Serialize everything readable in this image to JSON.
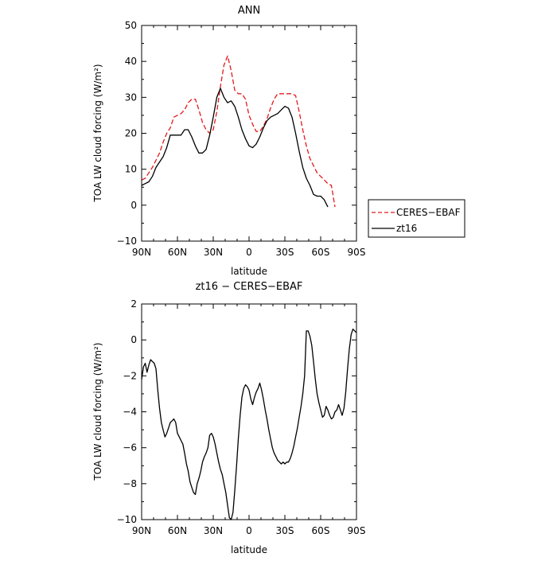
{
  "chart_data": [
    {
      "type": "line",
      "title": "ANN",
      "xlabel": "latitude",
      "ylabel": "TOA LW cloud forcing (W/m²)",
      "xlim": [
        90,
        -90
      ],
      "ylim": [
        -10,
        50
      ],
      "x_ticks": [
        "90N",
        "60N",
        "30N",
        "0",
        "30S",
        "60S",
        "90S"
      ],
      "y_ticks": [
        "50",
        "40",
        "30",
        "20",
        "10",
        "0",
        "−10"
      ],
      "legend": "right",
      "grid": false,
      "series": [
        {
          "name": "CERES−EBAF",
          "color": "#e41a1c",
          "dash": "dashed",
          "x": [
            90,
            87,
            84,
            81,
            78,
            75,
            72,
            69,
            66,
            63,
            60,
            57,
            54,
            51,
            48,
            45,
            42,
            39,
            36,
            33,
            30,
            27,
            24,
            21,
            18,
            15,
            12,
            9,
            6,
            3,
            0,
            -3,
            -6,
            -9,
            -12,
            -15,
            -18,
            -21,
            -24,
            -27,
            -30,
            -33,
            -36,
            -39,
            -42,
            -45,
            -48,
            -51,
            -54,
            -57,
            -60,
            -63,
            -66,
            -69,
            -72,
            -75,
            -78,
            -81,
            -84,
            -87,
            -90
          ],
          "y": [
            7,
            7.5,
            9,
            10.5,
            12.5,
            14.5,
            17.5,
            20,
            21.5,
            24.5,
            25,
            25.5,
            26.5,
            28.5,
            29.5,
            29.5,
            26.5,
            23,
            21,
            20,
            21,
            26,
            33,
            39,
            41.5,
            37.5,
            32,
            31,
            31,
            29.5,
            25,
            22.5,
            20.5,
            20.5,
            22,
            24,
            27,
            29.5,
            31,
            31,
            31,
            31,
            31,
            30.5,
            26,
            21,
            16.5,
            13,
            11,
            9,
            8,
            7,
            6,
            5.5,
            -0.5,
            null,
            null,
            null,
            null,
            null,
            null
          ]
        },
        {
          "name": "zt16",
          "color": "#000000",
          "dash": "solid",
          "x": [
            90,
            87,
            84,
            81,
            78,
            75,
            72,
            69,
            66,
            63,
            60,
            57,
            54,
            51,
            48,
            45,
            42,
            39,
            36,
            33,
            30,
            27,
            24,
            21,
            18,
            15,
            12,
            9,
            6,
            3,
            0,
            -3,
            -6,
            -9,
            -12,
            -15,
            -18,
            -21,
            -24,
            -27,
            -30,
            -33,
            -36,
            -39,
            -42,
            -45,
            -48,
            -51,
            -54,
            -57,
            -60,
            -63,
            -66,
            -69,
            -72,
            -75,
            -78,
            -81,
            -84,
            -87,
            -90
          ],
          "y": [
            5.5,
            6,
            6.5,
            8,
            10.5,
            12,
            13.5,
            16,
            19.5,
            19.5,
            19.5,
            19.5,
            21,
            21,
            19,
            16.5,
            14.5,
            14.5,
            15.5,
            19.5,
            24.5,
            30,
            32.5,
            30,
            28.5,
            29,
            27.5,
            24.5,
            21,
            18.5,
            16.5,
            16,
            17,
            19,
            21.5,
            23.5,
            24.5,
            25,
            25.5,
            26.5,
            27.5,
            27,
            24.5,
            20,
            15,
            10.5,
            7.5,
            5.5,
            3,
            2.5,
            2.5,
            1.5,
            -0.5,
            null,
            null,
            null,
            null,
            null,
            null,
            null,
            null
          ]
        }
      ]
    },
    {
      "type": "line",
      "title": "zt16 − CERES−EBAF",
      "xlabel": "latitude",
      "ylabel": "TOA LW cloud forcing (W/m²)",
      "xlim": [
        90,
        -90
      ],
      "ylim": [
        -10,
        2
      ],
      "x_ticks": [
        "90N",
        "60N",
        "30N",
        "0",
        "30S",
        "60S",
        "90S"
      ],
      "y_ticks": [
        "2",
        "0",
        "−2",
        "−4",
        "−6",
        "−8",
        "−10"
      ],
      "grid": false,
      "series": [
        {
          "color": "#000000",
          "dash": "solid",
          "x": [
            90,
            88.5,
            87,
            85.5,
            84,
            82.5,
            81,
            79.5,
            78,
            76.5,
            75,
            73.5,
            72,
            70.5,
            69,
            67.5,
            66,
            64.5,
            63,
            61.5,
            60,
            58.5,
            57,
            55.5,
            54,
            52.5,
            51,
            49.5,
            48,
            46.5,
            45,
            43.5,
            42,
            40.5,
            39,
            37.5,
            36,
            34.5,
            33,
            31.5,
            30,
            28.5,
            27,
            25.5,
            24,
            22.5,
            21,
            19.5,
            18,
            16.5,
            15,
            13.5,
            12,
            10.5,
            9,
            7.5,
            6,
            4.5,
            3,
            1.5,
            0,
            -1.5,
            -3,
            -4.5,
            -6,
            -7.5,
            -9,
            -10.5,
            -12,
            -13.5,
            -15,
            -16.5,
            -18,
            -19.5,
            -21,
            -22.5,
            -24,
            -25.5,
            -27,
            -28.5,
            -30,
            -31.5,
            -33,
            -34.5,
            -36,
            -37.5,
            -39,
            -40.5,
            -42,
            -43.5,
            -45,
            -46.5,
            -48,
            -49.5,
            -51,
            -52.5,
            -54,
            -55.5,
            -57,
            -58.5,
            -60,
            -61.5,
            -63,
            -64.5,
            -66,
            -67.5,
            -69,
            -70.5,
            -72,
            -73.5,
            -75,
            -76.5,
            -78,
            -79.5,
            -81,
            -82.5,
            -84,
            -85.5,
            -87,
            -88.5,
            -90
          ],
          "y": [
            -2.2,
            -1.5,
            -1.3,
            -1.8,
            -1.4,
            -1.1,
            -1.2,
            -1.3,
            -1.6,
            -2.8,
            -3.8,
            -4.6,
            -5,
            -5.4,
            -5.2,
            -4.9,
            -4.6,
            -4.5,
            -4.4,
            -4.6,
            -5.2,
            -5.4,
            -5.6,
            -5.8,
            -6.3,
            -6.9,
            -7.3,
            -7.9,
            -8.2,
            -8.5,
            -8.6,
            -8,
            -7.7,
            -7.3,
            -6.8,
            -6.5,
            -6.3,
            -6,
            -5.3,
            -5.2,
            -5.4,
            -5.8,
            -6.3,
            -6.8,
            -7.2,
            -7.5,
            -8,
            -8.5,
            -9.2,
            -9.9,
            -10,
            -9.6,
            -8.4,
            -7,
            -5.5,
            -4.2,
            -3.2,
            -2.7,
            -2.5,
            -2.6,
            -2.8,
            -3.3,
            -3.6,
            -3.2,
            -2.9,
            -2.7,
            -2.4,
            -2.8,
            -3.3,
            -3.9,
            -4.4,
            -5,
            -5.5,
            -6,
            -6.3,
            -6.5,
            -6.7,
            -6.8,
            -6.9,
            -6.8,
            -6.9,
            -6.8,
            -6.8,
            -6.6,
            -6.3,
            -5.9,
            -5.4,
            -4.9,
            -4.3,
            -3.7,
            -3,
            -2,
            0.5,
            0.5,
            0.2,
            -0.3,
            -1.2,
            -2.2,
            -3,
            -3.5,
            -3.9,
            -4.3,
            -4.2,
            -3.7,
            -3.9,
            -4.2,
            -4.4,
            -4.3,
            -4,
            -3.9,
            -3.6,
            -3.9,
            -4.2,
            -3.8,
            -2.9,
            -1.6,
            -0.5,
            0.3,
            0.6,
            0.5,
            0.4
          ]
        }
      ]
    }
  ],
  "legend": {
    "entries": [
      "CERES−EBAF",
      "zt16"
    ]
  }
}
